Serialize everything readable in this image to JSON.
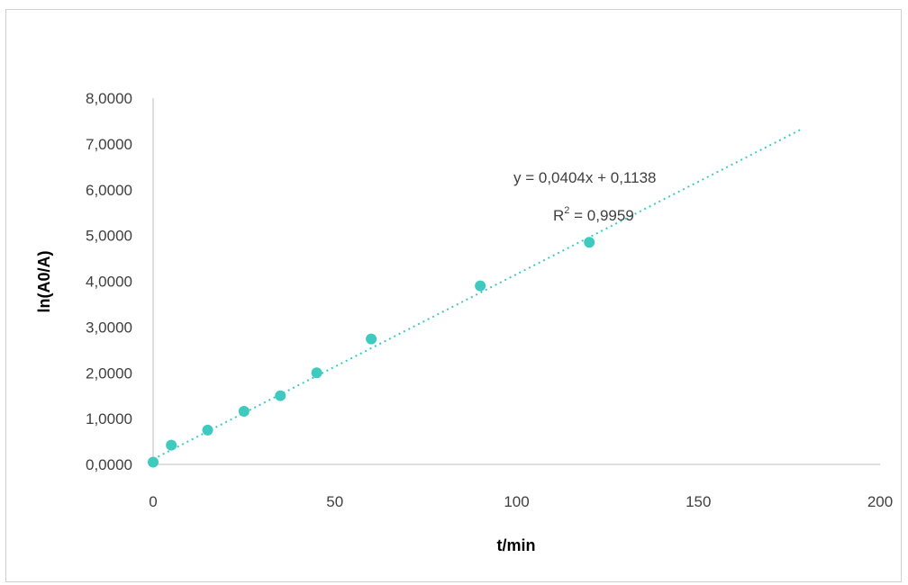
{
  "chart_data": {
    "type": "scatter",
    "title": "",
    "xlabel": "t/min",
    "ylabel": "ln(A0/A)",
    "xlim": [
      0,
      200
    ],
    "ylim": [
      0,
      8
    ],
    "xticks": [
      0,
      50,
      100,
      150,
      200
    ],
    "xtick_labels": [
      "0",
      "50",
      "100",
      "150",
      "200"
    ],
    "yticks": [
      0,
      1,
      2,
      3,
      4,
      5,
      6,
      7,
      8
    ],
    "ytick_labels": [
      "0,0000",
      "1,0000",
      "2,0000",
      "3,0000",
      "4,0000",
      "5,0000",
      "6,0000",
      "7,0000",
      "8,0000"
    ],
    "grid": false,
    "legend": "none",
    "series": [
      {
        "x": [
          0,
          5,
          15,
          25,
          35,
          45,
          60,
          90,
          120
        ],
        "y": [
          0.05,
          0.42,
          0.75,
          1.16,
          1.5,
          2.0,
          2.74,
          3.9,
          4.85
        ],
        "color": "#3fcac0"
      }
    ],
    "trendline": {
      "kind": "linear",
      "slope": 0.0404,
      "intercept": 0.1138,
      "x_range": [
        0,
        178
      ],
      "color": "#3fcac0",
      "style": "dotted",
      "equation_label": "y = 0,0404x + 0,1138",
      "r2_prefix": "R",
      "r2_sup": "2",
      "r2_value": " = 0,9959"
    }
  }
}
